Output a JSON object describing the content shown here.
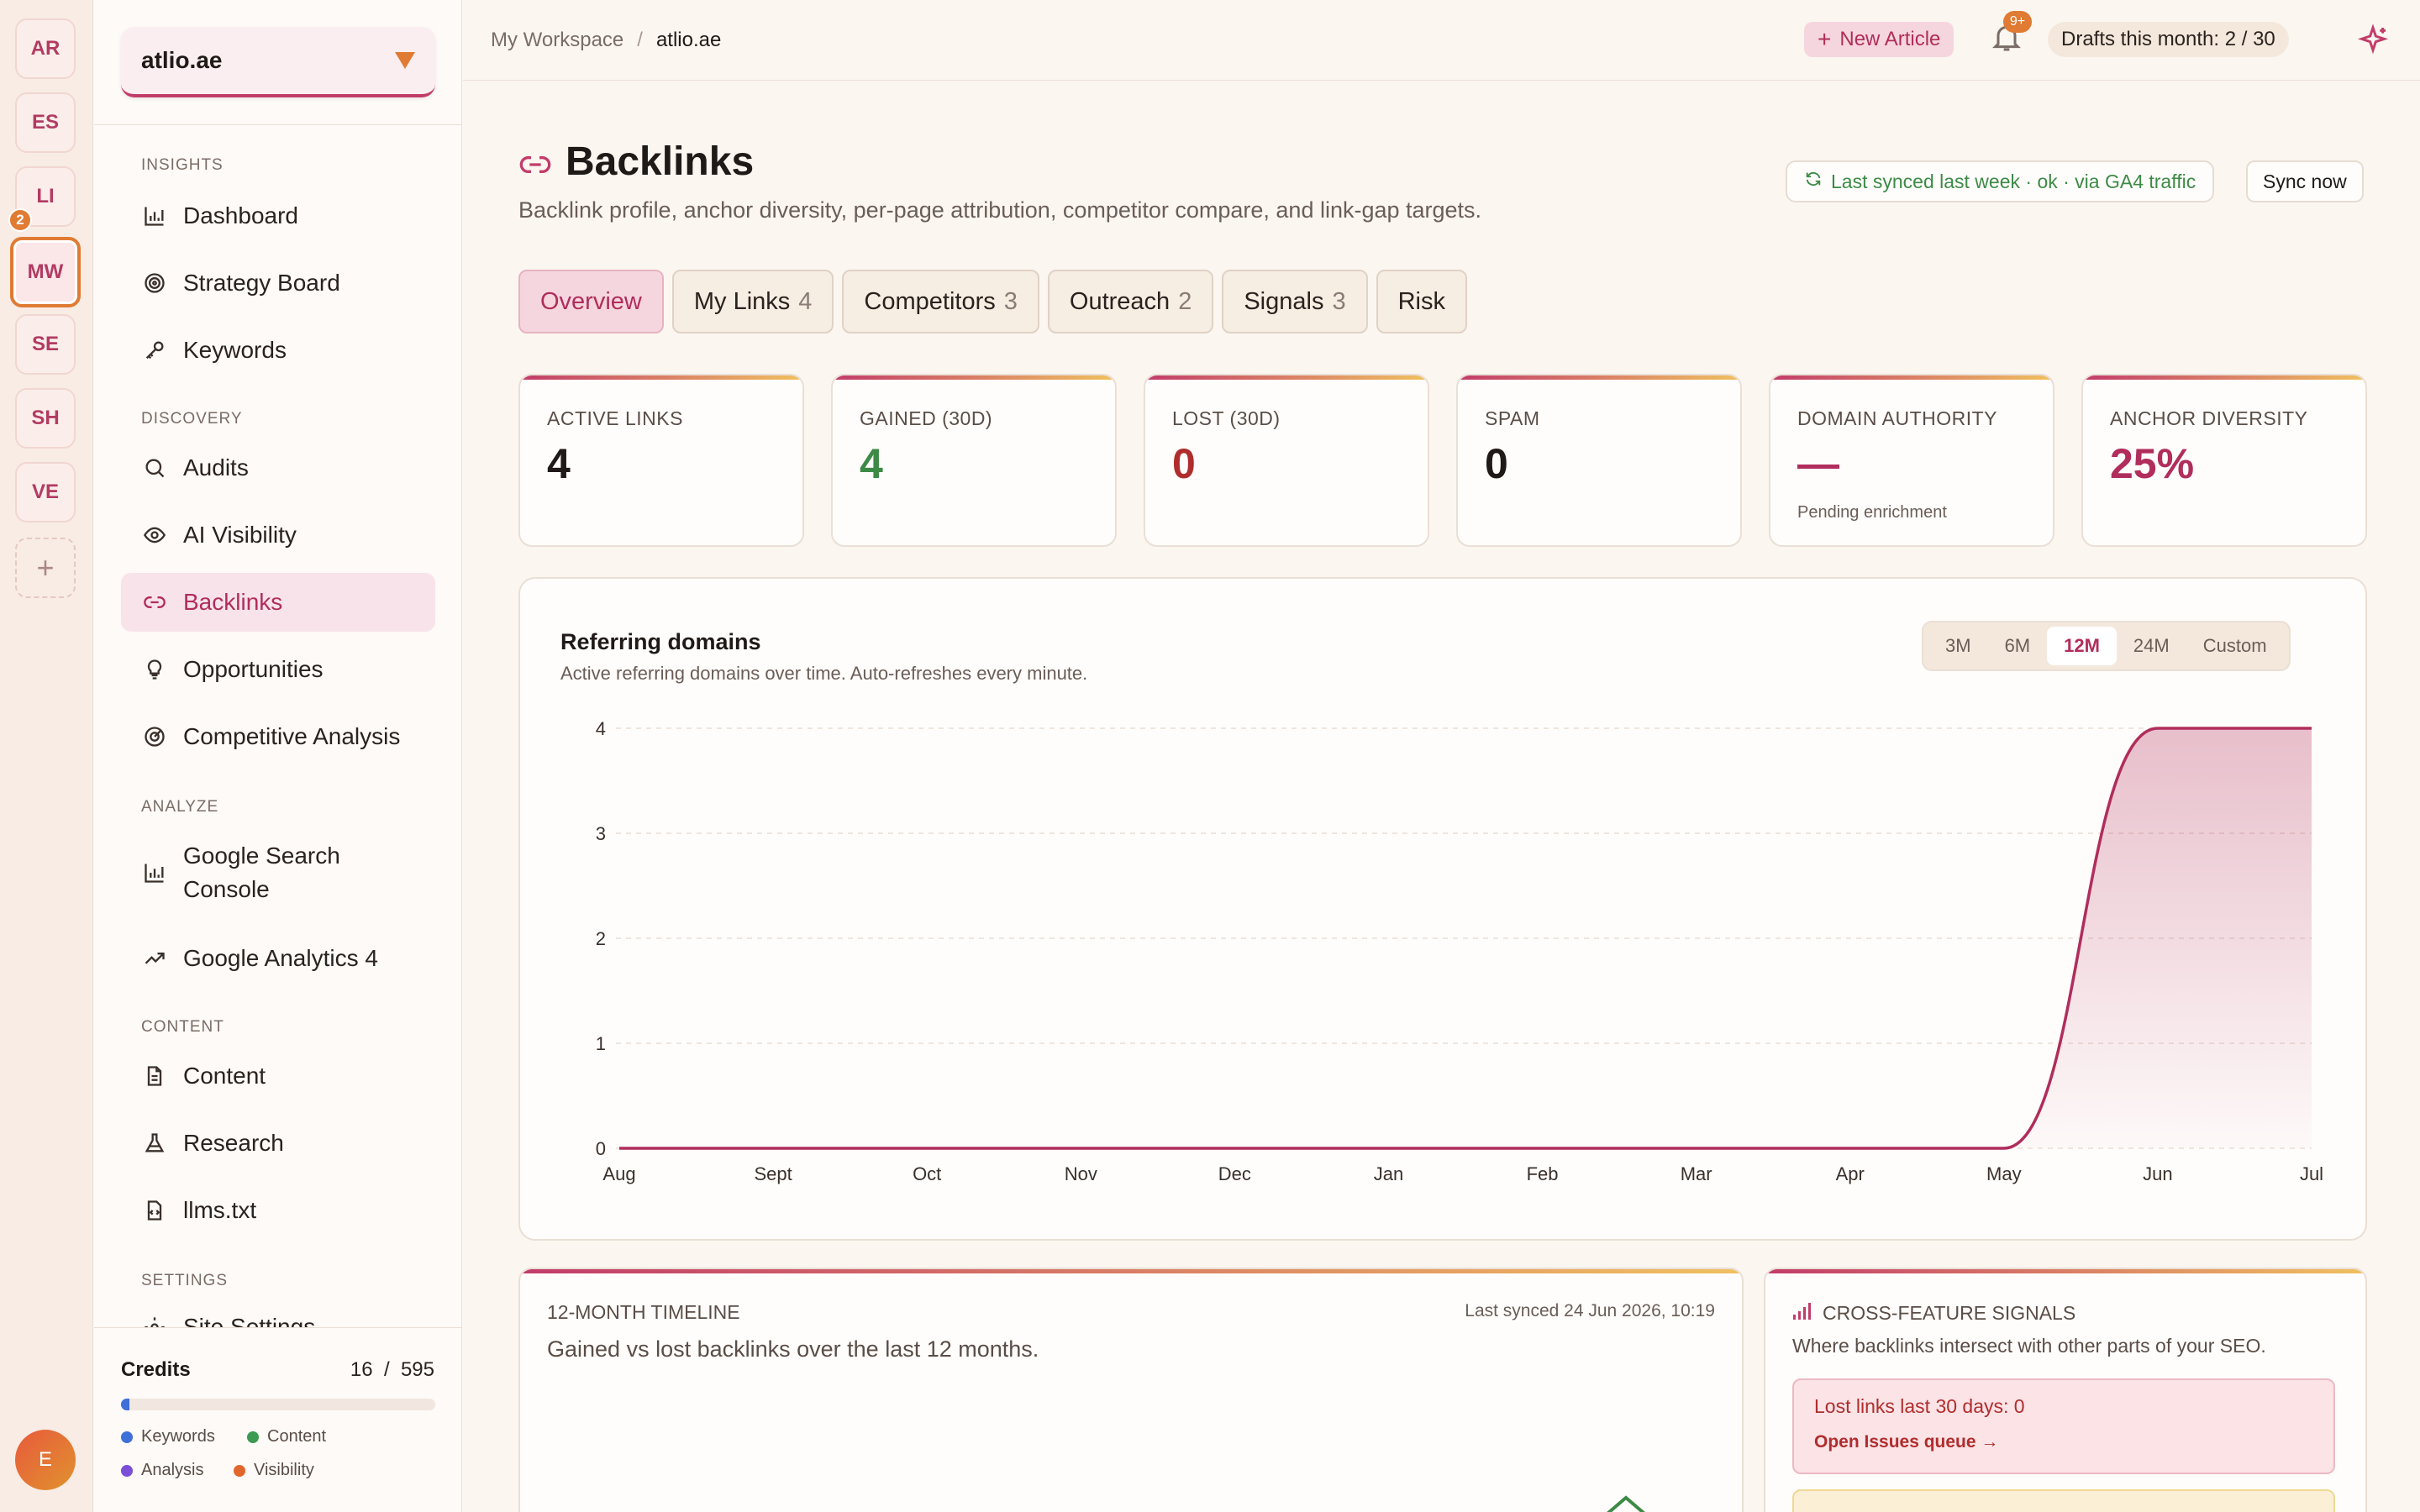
{
  "workspaces": [
    "AR",
    "ES",
    "LI",
    "MW",
    "SE",
    "SH",
    "VE"
  ],
  "workspace_badge": "2",
  "user_initial": "E",
  "site": {
    "name": "atlio.ae"
  },
  "nav": {
    "sections": {
      "insights": "INSIGHTS",
      "discovery": "DISCOVERY",
      "analyze": "ANALYZE",
      "content": "CONTENT",
      "settings": "SETTINGS"
    },
    "items": {
      "dashboard": "Dashboard",
      "strategy": "Strategy Board",
      "keywords": "Keywords",
      "audits": "Audits",
      "ai_visibility": "AI Visibility",
      "backlinks": "Backlinks",
      "opportunities": "Opportunities",
      "competitive": "Competitive Analysis",
      "gsc": "Google Search Console",
      "ga4": "Google Analytics 4",
      "content": "Content",
      "research": "Research",
      "llms": "llms.txt",
      "site_settings": "Site Settings"
    }
  },
  "credits": {
    "label": "Credits",
    "used": "16",
    "sep": "/",
    "total": "595",
    "fill_fraction": 0.027,
    "legend": [
      "Keywords",
      "Content",
      "Analysis",
      "Visibility"
    ],
    "legend_colors": [
      "#3f6fd8",
      "#3c9a52",
      "#7a4fd6",
      "#e0662e"
    ]
  },
  "topbar": {
    "breadcrumb": [
      "My Workspace",
      "atlio.ae"
    ],
    "breadcrumb_sep": "/",
    "new_article": "New Article",
    "notif_badge": "9+",
    "drafts": "Drafts this month: 2 / 30"
  },
  "page": {
    "title": "Backlinks",
    "subtitle": "Backlink profile, anchor diversity, per-page attribution, competitor compare, and link-gap targets.",
    "sync_status": "Last synced last week · ok · via GA4 traffic",
    "sync_button": "Sync now"
  },
  "tabs": [
    {
      "label": "Overview",
      "count": ""
    },
    {
      "label": "My Links",
      "count": "4"
    },
    {
      "label": "Competitors",
      "count": "3"
    },
    {
      "label": "Outreach",
      "count": "2"
    },
    {
      "label": "Signals",
      "count": "3"
    },
    {
      "label": "Risk",
      "count": ""
    }
  ],
  "stats": [
    {
      "label": "ACTIVE LINKS",
      "value": "4",
      "sub": "",
      "color": "#1f1a17"
    },
    {
      "label": "GAINED (30D)",
      "value": "4",
      "sub": "",
      "color": "#3c8a46"
    },
    {
      "label": "LOST (30D)",
      "value": "0",
      "sub": "",
      "color": "#b02d2d"
    },
    {
      "label": "SPAM",
      "value": "0",
      "sub": "",
      "color": "#1f1a17"
    },
    {
      "label": "DOMAIN AUTHORITY",
      "value": "—",
      "sub": "Pending enrichment",
      "color": "#b02d5c"
    },
    {
      "label": "ANCHOR DIVERSITY",
      "value": "25%",
      "sub": "",
      "color": "#b02d5c"
    }
  ],
  "chart_section": {
    "title": "Referring domains",
    "desc": "Active referring domains over time. Auto-refreshes every minute.",
    "ranges": [
      "3M",
      "6M",
      "12M",
      "24M",
      "Custom"
    ],
    "active_range": "12M"
  },
  "chart_data": {
    "type": "area",
    "categories": [
      "Aug",
      "Sept",
      "Oct",
      "Nov",
      "Dec",
      "Jan",
      "Feb",
      "Mar",
      "Apr",
      "May",
      "Jun",
      "Jul"
    ],
    "values": [
      0,
      0,
      0,
      0,
      0,
      0,
      0,
      0,
      0,
      0,
      4,
      4
    ],
    "ylim": [
      0,
      4
    ],
    "yticks": [
      0,
      1,
      2,
      3,
      4
    ],
    "grid": true,
    "color": "#b02d5c"
  },
  "timeline_card": {
    "label": "12-MONTH TIMELINE",
    "synced": "Last synced 24 Jun 2026, 10:19",
    "desc": "Gained vs lost backlinks over the last 12 months."
  },
  "signals_card": {
    "label": "CROSS-FEATURE SIGNALS",
    "desc": "Where backlinks intersect with other parts of your SEO.",
    "alert_text": "Lost links last 30 days: 0",
    "alert_link": "Open Issues queue →"
  }
}
